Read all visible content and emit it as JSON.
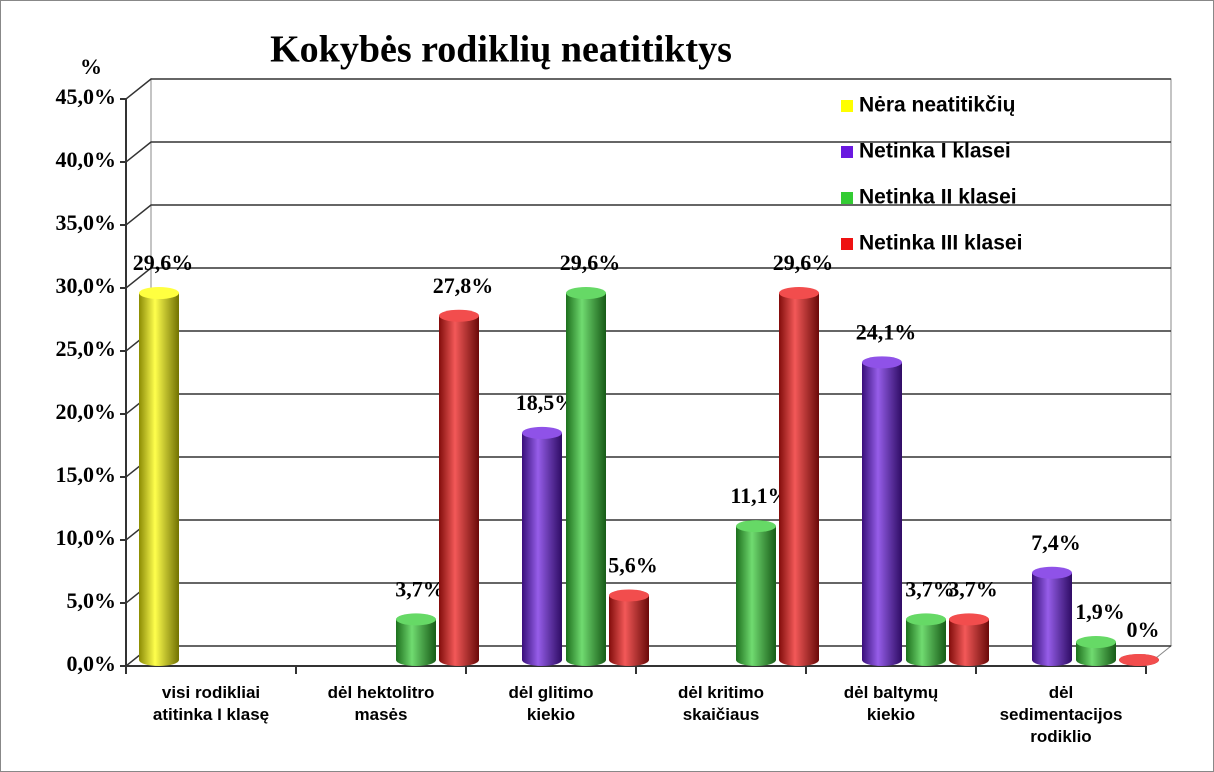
{
  "chart_data": {
    "type": "bar3d",
    "title": "Kokybės rodiklių neatitiktys",
    "y_label": "%",
    "categories": [
      "visi rodikliai atitinka I klasę",
      "dėl hektolitro masės",
      "dėl glitimo kiekio",
      "dėl kritimo skaičiaus",
      "dėl baltymų kiekio",
      "dėl sedimentacijos rodiklio"
    ],
    "series": [
      {
        "name": "Nėra neatitikčių",
        "color": "#ffff00",
        "values": [
          29.6,
          null,
          null,
          null,
          null,
          null
        ],
        "value_labels": [
          "29,6%",
          null,
          null,
          null,
          null,
          null
        ]
      },
      {
        "name": "Netinka  I  klasei",
        "color": "#6a18e0",
        "values": [
          null,
          null,
          18.5,
          null,
          24.1,
          7.4
        ],
        "value_labels": [
          null,
          null,
          "18,5%",
          null,
          "24,1%",
          "7,4%"
        ]
      },
      {
        "name": "Netinka  II  klasei",
        "color": "#33cc33",
        "values": [
          null,
          3.7,
          29.6,
          11.1,
          3.7,
          1.9
        ],
        "value_labels": [
          null,
          "3,7%",
          "29,6%",
          "11,1%",
          "3,7%",
          "1,9%"
        ]
      },
      {
        "name": "Netinka  III klasei",
        "color": "#ee1111",
        "values": [
          null,
          27.8,
          5.6,
          29.6,
          3.7,
          0
        ],
        "value_labels": [
          null,
          "27,8%",
          "5,6%",
          "29,6%",
          "3,7%",
          "0%"
        ]
      }
    ],
    "ylim": [
      0,
      45
    ],
    "yticks": [
      {
        "value": 0,
        "label": "0,0%"
      },
      {
        "value": 5,
        "label": "5,0%"
      },
      {
        "value": 10,
        "label": "10,0%"
      },
      {
        "value": 15,
        "label": "15,0%"
      },
      {
        "value": 20,
        "label": "20,0%"
      },
      {
        "value": 25,
        "label": "25,0%"
      },
      {
        "value": 30,
        "label": "30,0%"
      },
      {
        "value": 35,
        "label": "35,0%"
      },
      {
        "value": 40,
        "label": "40,0%"
      },
      {
        "value": 45,
        "label": "45,0%"
      }
    ],
    "grid": true,
    "legend": "top-right"
  }
}
